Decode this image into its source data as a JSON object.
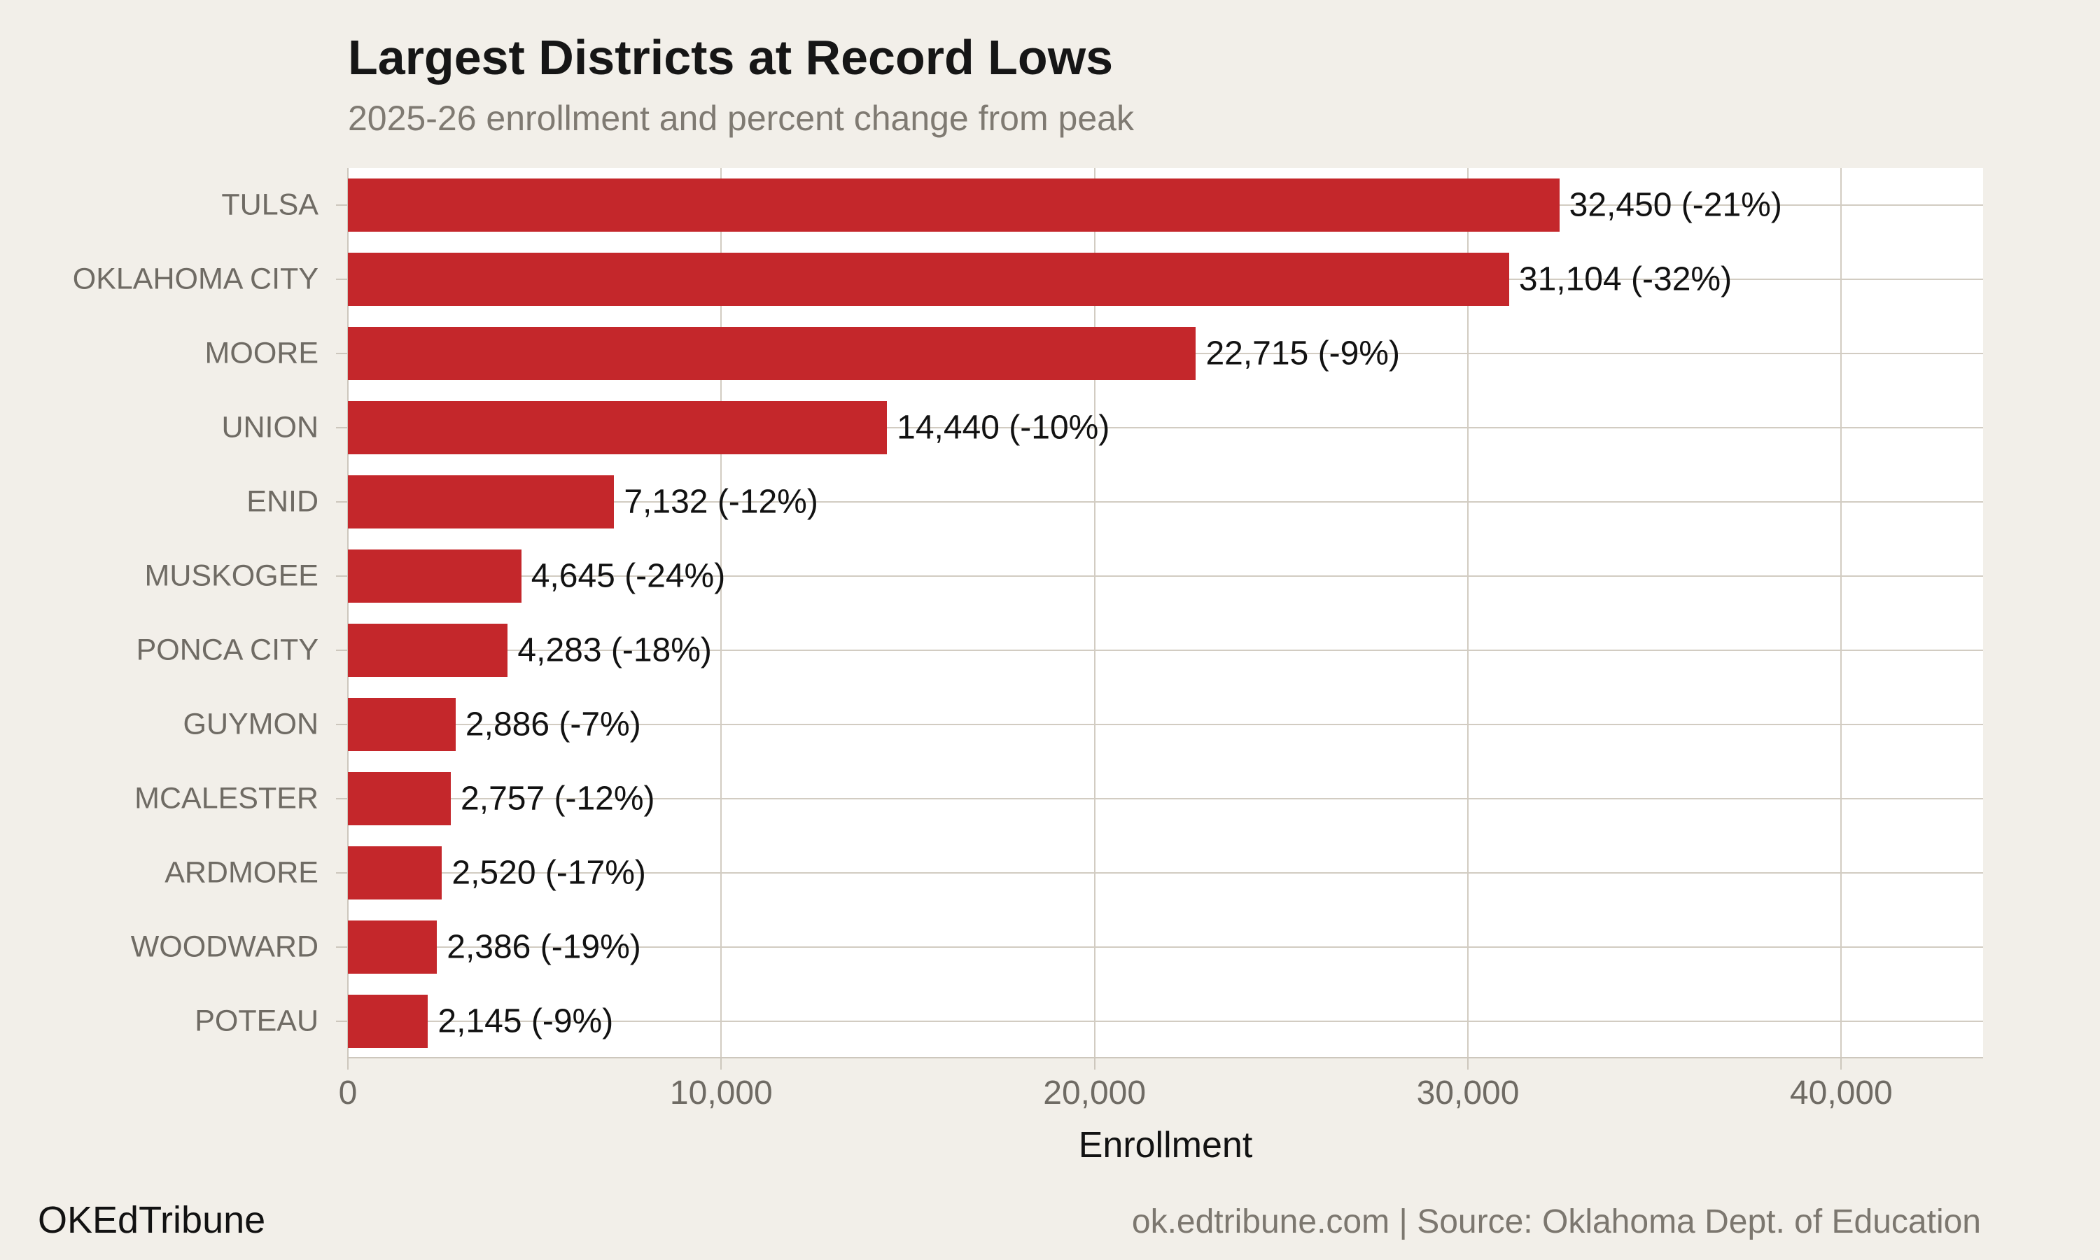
{
  "chart_data": {
    "type": "bar",
    "orientation": "horizontal",
    "title": "Largest Districts at Record Lows",
    "subtitle": "2025-26 enrollment and percent change from peak",
    "xlabel": "Enrollment",
    "xlim": [
      0,
      43800
    ],
    "grid": true,
    "x_ticks": [
      {
        "value": 0,
        "label": "0"
      },
      {
        "value": 10000,
        "label": "10,000"
      },
      {
        "value": 20000,
        "label": "20,000"
      },
      {
        "value": 30000,
        "label": "30,000"
      },
      {
        "value": 40000,
        "label": "40,000"
      }
    ],
    "categories": [
      "TULSA",
      "OKLAHOMA CITY",
      "MOORE",
      "UNION",
      "ENID",
      "MUSKOGEE",
      "PONCA CITY",
      "GUYMON",
      "MCALESTER",
      "ARDMORE",
      "WOODWARD",
      "POTEAU"
    ],
    "values": [
      32450,
      31104,
      22715,
      14440,
      7132,
      4645,
      4283,
      2886,
      2757,
      2520,
      2386,
      2145
    ],
    "pct_change_from_peak": [
      -21,
      -32,
      -9,
      -10,
      -12,
      -24,
      -18,
      -7,
      -12,
      -17,
      -19,
      -9
    ],
    "bar_labels": [
      "32,450 (-21%)",
      "31,104 (-32%)",
      "22,715 (-9%)",
      "14,440 (-10%)",
      "7,132 (-12%)",
      "4,645 (-24%)",
      "4,283 (-18%)",
      "2,886 (-7%)",
      "2,757 (-12%)",
      "2,520 (-17%)",
      "2,386 (-19%)",
      "2,145 (-9%)"
    ]
  },
  "footer": {
    "left": "OKEdTribune",
    "right": "ok.edtribune.com | Source: Oklahoma Dept. of Education"
  },
  "colors": {
    "background": "#f2efe9",
    "plot_background": "#ffffff",
    "bar": "#c4272b",
    "grid": "#d2ccc2",
    "axis": "#cdc7bd",
    "category_text": "#6f6b64",
    "tick_text": "#6f6b64",
    "value_text": "#121212",
    "title_text": "#161616",
    "subtitle_text": "#7f7a72",
    "footer_right_text": "#7c776f"
  }
}
